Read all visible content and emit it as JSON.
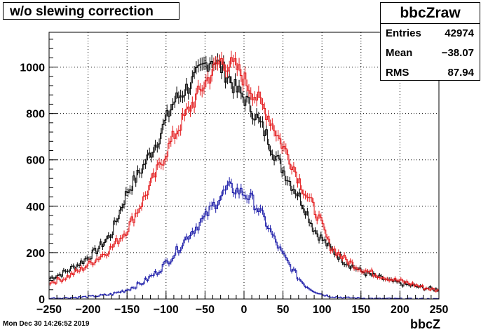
{
  "title": "w/o slewing correction",
  "stats": {
    "name": "bbcZraw",
    "entries_label": "Entries",
    "entries_value": "42974",
    "mean_label": "Mean",
    "mean_value": "−38.07",
    "rms_label": "RMS",
    "rms_value": "87.94"
  },
  "timestamp": "Mon Dec 30 14:26:52 2019",
  "chart_data": {
    "type": "line",
    "title": "w/o slewing correction",
    "xlabel": "bbcZ",
    "ylabel": "",
    "xlim": [
      -250,
      250
    ],
    "ylim": [
      0,
      1150
    ],
    "grid": true,
    "xticks": [
      "−250",
      "−200",
      "−150",
      "−100",
      "−50",
      "0",
      "50",
      "100",
      "150",
      "200",
      "250"
    ],
    "yticks": [
      "0",
      "200",
      "400",
      "600",
      "800",
      "1000"
    ],
    "series_points_x": [
      -250,
      -230,
      -210,
      -190,
      -170,
      -150,
      -130,
      -110,
      -90,
      -70,
      -50,
      -40,
      -30,
      -20,
      -10,
      0,
      10,
      20,
      30,
      40,
      50,
      60,
      70,
      80,
      90,
      100,
      110,
      130,
      150,
      170,
      190,
      210,
      230,
      250
    ],
    "series": [
      {
        "color": "#000000",
        "values": [
          88,
          115,
          155,
          205,
          280,
          460,
          565,
          690,
          850,
          920,
          1010,
          1040,
          1000,
          960,
          900,
          870,
          820,
          760,
          700,
          620,
          560,
          500,
          450,
          380,
          300,
          260,
          220,
          160,
          120,
          95,
          75,
          60,
          48,
          40
        ]
      },
      {
        "color": "#e31a1c",
        "values": [
          70,
          90,
          125,
          170,
          220,
          300,
          420,
          560,
          700,
          820,
          930,
          980,
          1030,
          1010,
          1000,
          950,
          900,
          850,
          800,
          730,
          660,
          600,
          520,
          450,
          390,
          320,
          230,
          170,
          130,
          105,
          85,
          70,
          50,
          35
        ]
      },
      {
        "color": "#1a1aa8",
        "values": [
          4,
          5,
          8,
          12,
          20,
          40,
          70,
          120,
          190,
          280,
          350,
          400,
          440,
          480,
          470,
          455,
          430,
          380,
          320,
          250,
          190,
          140,
          90,
          55,
          35,
          20,
          12,
          6,
          4,
          2,
          2,
          1,
          1,
          0
        ]
      }
    ]
  }
}
